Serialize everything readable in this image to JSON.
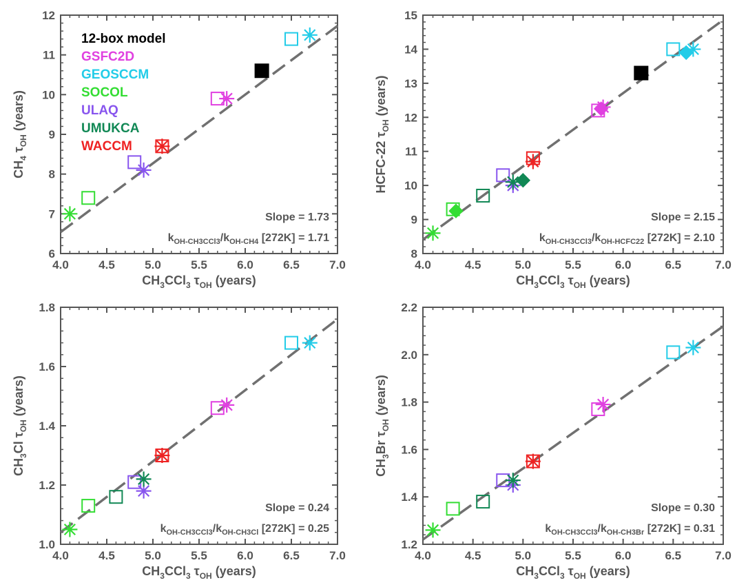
{
  "colors": {
    "12-box model": "#000000",
    "GSFC2D": "#e040e0",
    "GEOSCCM": "#22cce8",
    "SOCOL": "#33dd33",
    "ULAQ": "#8855ee",
    "UMUKCA": "#118855",
    "WACCM": "#ee2222",
    "fit_line": "#707070",
    "axis": "#555555"
  },
  "legend": {
    "entries": [
      "12-box model",
      "GSFC2D",
      "GEOSCCM",
      "SOCOL",
      "ULAQ",
      "UMUKCA",
      "WACCM"
    ],
    "placement": "top-left of first panel"
  },
  "chart_data": [
    {
      "type": "scatter",
      "panel": "top-left",
      "xlabel": {
        "main": "CH",
        "s1": "3",
        "mid": "CCl",
        "s2": "3",
        "tau": " τ",
        "tsub": "OH",
        "end": " (years)"
      },
      "ylabel": {
        "main": "CH",
        "s1": "4",
        "tau": " τ",
        "tsub": "OH",
        "end": " (years)"
      },
      "xlim": [
        4.0,
        7.0
      ],
      "ylim": [
        6,
        12
      ],
      "xticks": [
        "4.0",
        "4.5",
        "5.0",
        "5.5",
        "6.0",
        "6.5",
        "7.0"
      ],
      "yticks": [
        "6",
        "7",
        "8",
        "9",
        "10",
        "11",
        "12"
      ],
      "slope_text": "Slope = 1.73",
      "ratio_text": {
        "k1": "k",
        "k1sub": "OH-CH3CCl3",
        "slash": "/",
        "k2": "k",
        "k2sub": "OH-CH4",
        "rest": " [272K] = 1.71"
      },
      "fit": {
        "slope": 1.73,
        "x": [
          4.0,
          7.0
        ],
        "y": [
          6.54,
          11.73
        ]
      },
      "points": [
        {
          "model": "GEOSCCM",
          "marker": "square",
          "x": 6.5,
          "y": 11.4
        },
        {
          "model": "GEOSCCM",
          "marker": "star",
          "x": 6.7,
          "y": 11.5
        },
        {
          "model": "12-box model",
          "marker": "filled-square",
          "x": 6.18,
          "y": 10.6
        },
        {
          "model": "GSFC2D",
          "marker": "square",
          "x": 5.7,
          "y": 9.9
        },
        {
          "model": "GSFC2D",
          "marker": "star",
          "x": 5.8,
          "y": 9.9
        },
        {
          "model": "WACCM",
          "marker": "square",
          "x": 5.1,
          "y": 8.7
        },
        {
          "model": "WACCM",
          "marker": "star",
          "x": 5.1,
          "y": 8.7
        },
        {
          "model": "ULAQ",
          "marker": "square",
          "x": 4.8,
          "y": 8.3
        },
        {
          "model": "ULAQ",
          "marker": "star",
          "x": 4.9,
          "y": 8.1
        },
        {
          "model": "SOCOL",
          "marker": "square",
          "x": 4.3,
          "y": 7.4
        },
        {
          "model": "SOCOL",
          "marker": "star",
          "x": 4.1,
          "y": 7.0
        }
      ]
    },
    {
      "type": "scatter",
      "panel": "top-right",
      "xlabel": {
        "main": "CH",
        "s1": "3",
        "mid": "CCl",
        "s2": "3",
        "tau": " τ",
        "tsub": "OH",
        "end": " (years)"
      },
      "ylabel": {
        "main": "HCFC-22",
        "s1": "",
        "tau": " τ",
        "tsub": "OH",
        "end": " (years)"
      },
      "xlim": [
        4.0,
        7.0
      ],
      "ylim": [
        8,
        15
      ],
      "xticks": [
        "4.0",
        "4.5",
        "5.0",
        "5.5",
        "6.0",
        "6.5",
        "7.0"
      ],
      "yticks": [
        "8",
        "9",
        "10",
        "11",
        "12",
        "13",
        "14",
        "15"
      ],
      "slope_text": "Slope = 2.15",
      "ratio_text": {
        "k1": "k",
        "k1sub": "OH-CH3CCl3",
        "slash": "/",
        "k2": "k",
        "k2sub": "OH-HCFC22",
        "rest": " [272K] = 2.10"
      },
      "fit": {
        "slope": 2.15,
        "x": [
          4.0,
          7.0
        ],
        "y": [
          8.41,
          14.86
        ]
      },
      "points": [
        {
          "model": "GEOSCCM",
          "marker": "square",
          "x": 6.5,
          "y": 14.0
        },
        {
          "model": "GEOSCCM",
          "marker": "star",
          "x": 6.7,
          "y": 14.0
        },
        {
          "model": "GEOSCCM",
          "marker": "diamond",
          "x": 6.63,
          "y": 13.9
        },
        {
          "model": "12-box model",
          "marker": "filled-square",
          "x": 6.18,
          "y": 13.3
        },
        {
          "model": "GSFC2D",
          "marker": "square",
          "x": 5.75,
          "y": 12.2
        },
        {
          "model": "GSFC2D",
          "marker": "star",
          "x": 5.8,
          "y": 12.3
        },
        {
          "model": "GSFC2D",
          "marker": "diamond",
          "x": 5.78,
          "y": 12.25
        },
        {
          "model": "WACCM",
          "marker": "square",
          "x": 5.1,
          "y": 10.8
        },
        {
          "model": "WACCM",
          "marker": "star",
          "x": 5.1,
          "y": 10.7
        },
        {
          "model": "ULAQ",
          "marker": "square",
          "x": 4.8,
          "y": 10.3
        },
        {
          "model": "ULAQ",
          "marker": "star",
          "x": 4.9,
          "y": 10.0
        },
        {
          "model": "UMUKCA",
          "marker": "square",
          "x": 4.6,
          "y": 9.7
        },
        {
          "model": "UMUKCA",
          "marker": "star",
          "x": 4.9,
          "y": 10.1
        },
        {
          "model": "UMUKCA",
          "marker": "diamond",
          "x": 5.0,
          "y": 10.15
        },
        {
          "model": "SOCOL",
          "marker": "square",
          "x": 4.3,
          "y": 9.3
        },
        {
          "model": "SOCOL",
          "marker": "star",
          "x": 4.1,
          "y": 8.6
        },
        {
          "model": "SOCOL",
          "marker": "diamond",
          "x": 4.33,
          "y": 9.25
        }
      ]
    },
    {
      "type": "scatter",
      "panel": "bottom-left",
      "xlabel": {
        "main": "CH",
        "s1": "3",
        "mid": "CCl",
        "s2": "3",
        "tau": " τ",
        "tsub": "OH",
        "end": " (years)"
      },
      "ylabel": {
        "main": "CH",
        "s1": "3",
        "mid": "Cl",
        "tau": " τ",
        "tsub": "OH",
        "end": " (years)"
      },
      "xlim": [
        4.0,
        7.0
      ],
      "ylim": [
        1.0,
        1.8
      ],
      "xticks": [
        "4.0",
        "4.5",
        "5.0",
        "5.5",
        "6.0",
        "6.5",
        "7.0"
      ],
      "yticks": [
        "1.0",
        "1.2",
        "1.4",
        "1.6",
        "1.8"
      ],
      "slope_text": "Slope = 0.24",
      "ratio_text": {
        "k1": "k",
        "k1sub": "OH-CH3CCl3",
        "slash": "/",
        "k2": "k",
        "k2sub": "OH-CH3Cl",
        "rest": " [272K] = 0.25"
      },
      "fit": {
        "slope": 0.24,
        "x": [
          4.0,
          7.0
        ],
        "y": [
          1.04,
          1.76
        ]
      },
      "points": [
        {
          "model": "GEOSCCM",
          "marker": "square",
          "x": 6.5,
          "y": 1.68
        },
        {
          "model": "GEOSCCM",
          "marker": "star",
          "x": 6.7,
          "y": 1.68
        },
        {
          "model": "GSFC2D",
          "marker": "square",
          "x": 5.7,
          "y": 1.46
        },
        {
          "model": "GSFC2D",
          "marker": "star",
          "x": 5.8,
          "y": 1.47
        },
        {
          "model": "WACCM",
          "marker": "square",
          "x": 5.1,
          "y": 1.3
        },
        {
          "model": "WACCM",
          "marker": "star",
          "x": 5.1,
          "y": 1.3
        },
        {
          "model": "ULAQ",
          "marker": "square",
          "x": 4.8,
          "y": 1.21
        },
        {
          "model": "ULAQ",
          "marker": "star",
          "x": 4.9,
          "y": 1.18
        },
        {
          "model": "UMUKCA",
          "marker": "square",
          "x": 4.6,
          "y": 1.16
        },
        {
          "model": "UMUKCA",
          "marker": "star",
          "x": 4.9,
          "y": 1.22
        },
        {
          "model": "SOCOL",
          "marker": "square",
          "x": 4.3,
          "y": 1.13
        },
        {
          "model": "SOCOL",
          "marker": "star",
          "x": 4.1,
          "y": 1.05
        }
      ]
    },
    {
      "type": "scatter",
      "panel": "bottom-right",
      "xlabel": {
        "main": "CH",
        "s1": "3",
        "mid": "CCl",
        "s2": "3",
        "tau": " τ",
        "tsub": "OH",
        "end": " (years)"
      },
      "ylabel": {
        "main": "CH",
        "s1": "3",
        "mid": "Br",
        "tau": " τ",
        "tsub": "OH",
        "end": " (years)"
      },
      "xlim": [
        4.0,
        7.0
      ],
      "ylim": [
        1.2,
        2.2
      ],
      "xticks": [
        "4.0",
        "4.5",
        "5.0",
        "5.5",
        "6.0",
        "6.5",
        "7.0"
      ],
      "yticks": [
        "1.2",
        "1.4",
        "1.6",
        "1.8",
        "2.0",
        "2.2"
      ],
      "slope_text": "Slope = 0.30",
      "ratio_text": {
        "k1": "k",
        "k1sub": "OH-CH3CCl3",
        "slash": "/",
        "k2": "k",
        "k2sub": "OH-CH3Br",
        "rest": " [272K] = 0.31"
      },
      "fit": {
        "slope": 0.3,
        "x": [
          4.0,
          7.0
        ],
        "y": [
          1.22,
          2.12
        ]
      },
      "points": [
        {
          "model": "GEOSCCM",
          "marker": "square",
          "x": 6.5,
          "y": 2.01
        },
        {
          "model": "GEOSCCM",
          "marker": "star",
          "x": 6.7,
          "y": 2.03
        },
        {
          "model": "GSFC2D",
          "marker": "square",
          "x": 5.75,
          "y": 1.77
        },
        {
          "model": "GSFC2D",
          "marker": "star",
          "x": 5.8,
          "y": 1.79
        },
        {
          "model": "WACCM",
          "marker": "square",
          "x": 5.1,
          "y": 1.55
        },
        {
          "model": "WACCM",
          "marker": "star",
          "x": 5.1,
          "y": 1.55
        },
        {
          "model": "ULAQ",
          "marker": "square",
          "x": 4.8,
          "y": 1.47
        },
        {
          "model": "ULAQ",
          "marker": "star",
          "x": 4.9,
          "y": 1.45
        },
        {
          "model": "UMUKCA",
          "marker": "square",
          "x": 4.6,
          "y": 1.38
        },
        {
          "model": "UMUKCA",
          "marker": "star",
          "x": 4.9,
          "y": 1.47
        },
        {
          "model": "SOCOL",
          "marker": "square",
          "x": 4.3,
          "y": 1.35
        },
        {
          "model": "SOCOL",
          "marker": "star",
          "x": 4.1,
          "y": 1.26
        }
      ]
    }
  ]
}
